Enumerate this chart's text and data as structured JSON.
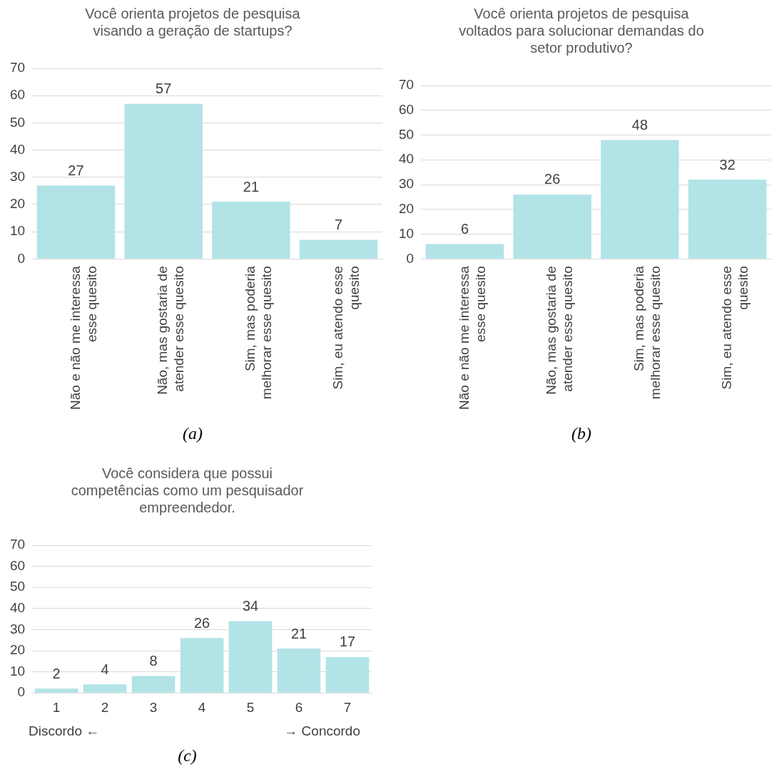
{
  "chart_data": [
    {
      "type": "bar",
      "title": "Você orienta projetos de pesquisa visando a geração de startups?",
      "categories": [
        "Não e não me interessa esse quesito",
        "Não, mas gostaria de atender esse quesito",
        "Sim, mas poderia melhorar esse quesito",
        "Sim, eu atendo esse quesito"
      ],
      "values": [
        27,
        57,
        21,
        7
      ],
      "color": "#b2e3e6",
      "ylim": [
        0,
        70
      ],
      "yticks": [
        0,
        10,
        20,
        30,
        40,
        50,
        60,
        70
      ],
      "grid": "y",
      "legend": false,
      "data_labels": true,
      "annotations": [
        "(a)"
      ]
    },
    {
      "type": "bar",
      "title": "Você orienta projetos de pesquisa voltados para solucionar demandas do setor produtivo?",
      "categories": [
        "Não e não me interessa esse quesito",
        "Não, mas gostaria de atender esse quesito",
        "Sim, mas poderia melhorar esse quesito",
        "Sim, eu atendo esse quesito"
      ],
      "values": [
        6,
        26,
        48,
        32
      ],
      "color": "#b2e3e6",
      "ylim": [
        0,
        70
      ],
      "yticks": [
        0,
        10,
        20,
        30,
        40,
        50,
        60,
        70
      ],
      "grid": "y",
      "legend": false,
      "data_labels": true,
      "annotations": [
        "(b)"
      ]
    },
    {
      "type": "bar",
      "title": "Você considera que possui competências como um pesquisador empreendedor.",
      "categories": [
        "1",
        "2",
        "3",
        "4",
        "5",
        "6",
        "7"
      ],
      "values": [
        2,
        4,
        8,
        26,
        34,
        21,
        17
      ],
      "color": "#b2e3e6",
      "ylim": [
        0,
        70
      ],
      "yticks": [
        0,
        10,
        20,
        30,
        40,
        50,
        60,
        70
      ],
      "grid": "y",
      "legend": false,
      "data_labels": true,
      "annotations": [
        "Discordo ←",
        "→ Concordo",
        "(c)"
      ]
    }
  ]
}
